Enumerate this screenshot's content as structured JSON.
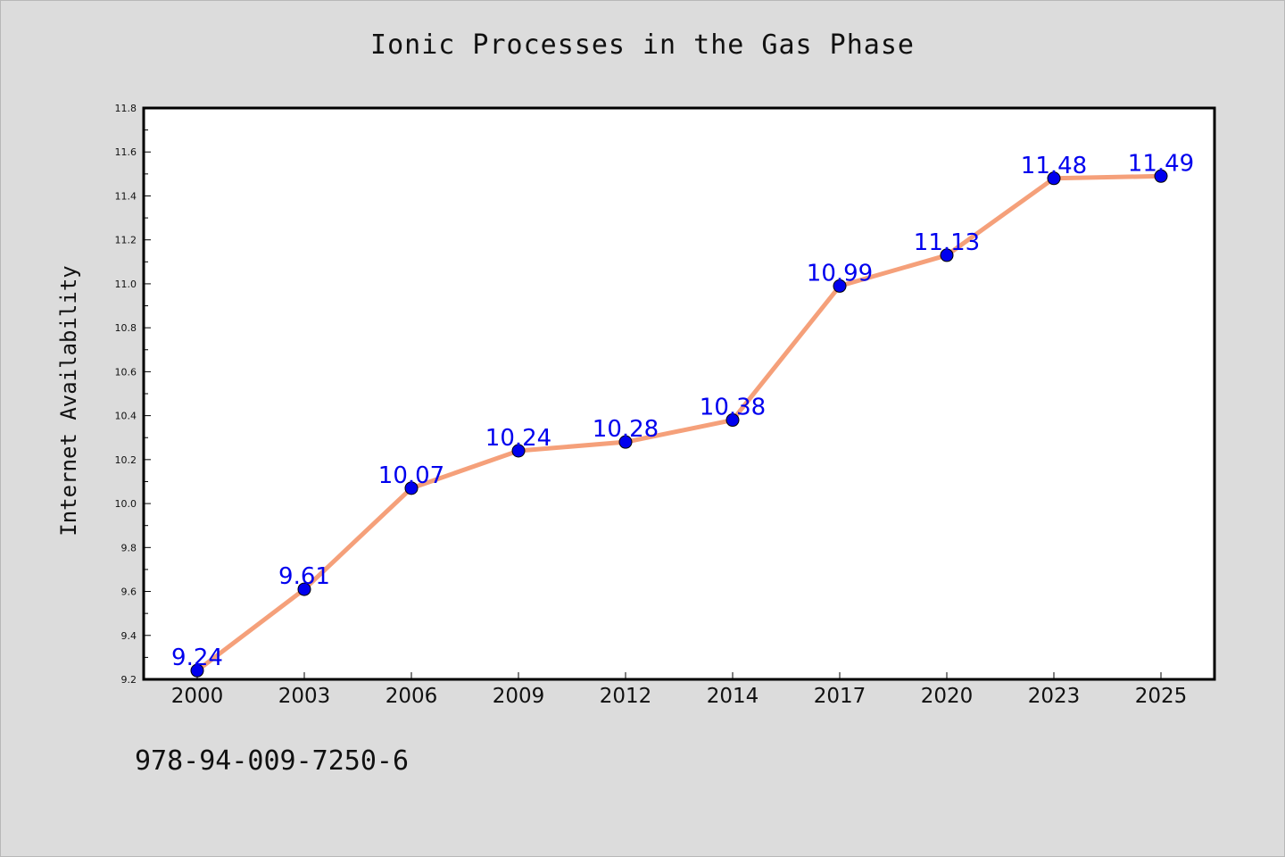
{
  "chart_data": {
    "type": "line",
    "title": "Ionic Processes in the Gas Phase",
    "xlabel": "",
    "ylabel": "Internet Availability",
    "categories": [
      "2000",
      "2003",
      "2006",
      "2009",
      "2012",
      "2014",
      "2017",
      "2020",
      "2023",
      "2025"
    ],
    "series": [
      {
        "values": [
          9.24,
          9.61,
          10.07,
          10.24,
          10.28,
          10.38,
          10.99,
          11.13,
          11.48,
          11.49
        ],
        "labels": [
          "9.24",
          "9.61",
          "10.07",
          "10.24",
          "10.28",
          "10.38",
          "10.99",
          "11.13",
          "11.48",
          "11.49"
        ],
        "line_color": "#f5a07a",
        "marker_color": "#0000ee",
        "label_color": "#0000ee"
      }
    ],
    "ylim": [
      9.2,
      11.8
    ],
    "yticks": [
      "9.2",
      "9.4",
      "9.6",
      "9.8",
      "10.0",
      "10.2",
      "10.4",
      "10.6",
      "10.8",
      "11.0",
      "11.2",
      "11.4",
      "11.6",
      "11.8"
    ],
    "grid": false,
    "legend": "none"
  },
  "footnote": "978-94-009-7250-6",
  "colors": {
    "background": "#dcdcdc",
    "plot_background": "#ffffff",
    "axis": "#000000"
  }
}
